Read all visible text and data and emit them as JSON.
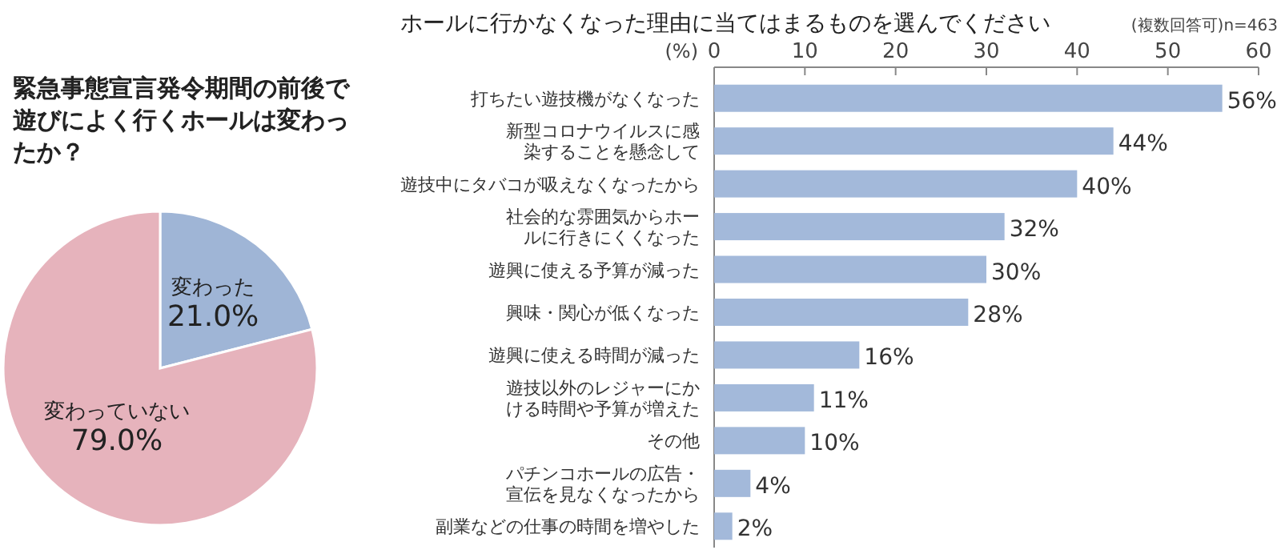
{
  "chart_data": [
    {
      "type": "pie",
      "title": "緊急事態宣言発令期間の前後で遊びによく行くホールは変わったか？",
      "categories": [
        "変わった",
        "変わっていない"
      ],
      "values": [
        21.0,
        79.0
      ],
      "value_labels": [
        "21.0%",
        "79.0%"
      ],
      "colors": [
        "#9fb5d6",
        "#e6b3bc"
      ]
    },
    {
      "type": "bar",
      "orientation": "horizontal",
      "title": "ホールに行かなくなった理由に当てはまるものを選んでください",
      "subtitle": "(複数回答可)n=463",
      "xlabel": "(%)",
      "categories": [
        "打ちたい遊技機がなくなった",
        "新型コロナウイルスに感染することを懸念して",
        "遊技中にタバコが吸えなくなったから",
        "社会的な雰囲気からホールに行きにくくなった",
        "遊興に使える予算が減った",
        "興味・関心が低くなった",
        "遊興に使える時間が減った",
        "遊技以外のレジャーにかける時間や予算が増えた",
        "その他",
        "パチンコホールの広告・宣伝を見なくなったから",
        "副業などの仕事の時間を増やした"
      ],
      "values": [
        56,
        44,
        40,
        32,
        30,
        28,
        16,
        11,
        10,
        4,
        2
      ],
      "value_labels": [
        "56%",
        "44%",
        "40%",
        "32%",
        "30%",
        "28%",
        "16%",
        "11%",
        "10%",
        "4%",
        "2%"
      ],
      "color": "#a3b9da",
      "xlim": [
        0,
        60
      ],
      "xticks": [
        0,
        10,
        20,
        30,
        40,
        50,
        60
      ],
      "grid": false
    }
  ]
}
